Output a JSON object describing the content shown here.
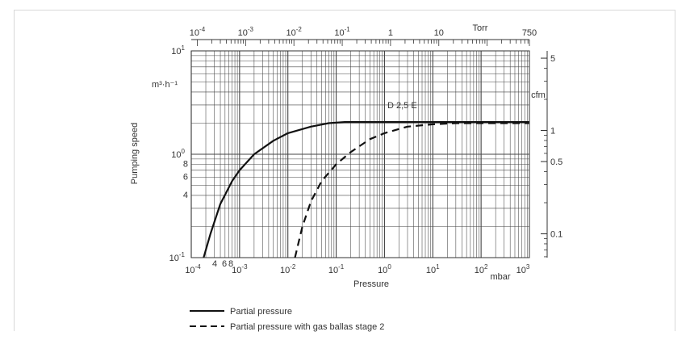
{
  "chart_data": {
    "type": "line",
    "xscale": "log",
    "yscale": "log",
    "xlim": [
      0.0001,
      1000
    ],
    "ylim": [
      0.1,
      10
    ],
    "grid": true,
    "xlabel": "Pressure",
    "xunit": "mbar",
    "ylabel": "Pumping speed",
    "yunit": "m³·h⁻¹",
    "x_ticks": [
      {
        "value": 0.0001,
        "base": "10",
        "exp": "-4"
      },
      {
        "value": 0.001,
        "base": "10",
        "exp": "-3"
      },
      {
        "value": 0.01,
        "base": "10",
        "exp": "-2"
      },
      {
        "value": 0.1,
        "base": "10",
        "exp": "-1"
      },
      {
        "value": 1,
        "base": "10",
        "exp": "0"
      },
      {
        "value": 10,
        "base": "10",
        "exp": "1"
      },
      {
        "value": 100,
        "base": "10",
        "exp": "2"
      },
      {
        "value": 1000,
        "base": "10",
        "exp": "3"
      }
    ],
    "x_minor_labels": [
      "4",
      "6",
      "8"
    ],
    "y_ticks": [
      {
        "value": 0.1,
        "base": "10",
        "exp": "-1"
      },
      {
        "value": 1,
        "base": "10",
        "exp": "0"
      },
      {
        "value": 10,
        "base": "10",
        "exp": "1"
      }
    ],
    "y_minor_labels": [
      {
        "value": 0.4,
        "label": "4"
      },
      {
        "value": 0.6,
        "label": "6"
      },
      {
        "value": 0.8,
        "label": "8"
      }
    ],
    "top_axis": {
      "unit": "Torr",
      "ticks": [
        {
          "value": 0.0001,
          "base": "10",
          "exp": "-4"
        },
        {
          "value": 0.001,
          "base": "10",
          "exp": "-3"
        },
        {
          "value": 0.01,
          "base": "10",
          "exp": "-2"
        },
        {
          "value": 0.1,
          "base": "10",
          "exp": "-1"
        },
        {
          "value": 1,
          "label": "1"
        },
        {
          "value": 10,
          "label": "10"
        },
        {
          "value": 750,
          "label": "750"
        }
      ]
    },
    "right_axis": {
      "unit": "cfm",
      "ticks": [
        {
          "value": 5,
          "label": "5"
        },
        {
          "value": 1,
          "label": "1"
        },
        {
          "value": 0.5,
          "label": "0.5"
        },
        {
          "value": 0.1,
          "label": "0.1"
        }
      ]
    },
    "annotation": "D 2,5 E",
    "series": [
      {
        "name": "Partial pressure",
        "style": "solid",
        "x": [
          0.00018,
          0.00025,
          0.0004,
          0.0007,
          0.001,
          0.002,
          0.005,
          0.01,
          0.03,
          0.07,
          0.15,
          0.3,
          1,
          10,
          100,
          1000
        ],
        "y": [
          0.1,
          0.17,
          0.33,
          0.55,
          0.7,
          1.0,
          1.35,
          1.6,
          1.85,
          2.0,
          2.05,
          2.05,
          2.05,
          2.05,
          2.05,
          2.05
        ]
      },
      {
        "name": "Partial pressure with gas ballas stage 2",
        "style": "dashed",
        "x": [
          0.014,
          0.02,
          0.03,
          0.05,
          0.1,
          0.2,
          0.5,
          1,
          3,
          10,
          30,
          100,
          1000
        ],
        "y": [
          0.1,
          0.2,
          0.35,
          0.55,
          0.8,
          1.05,
          1.4,
          1.6,
          1.85,
          1.95,
          2.0,
          2.0,
          2.0
        ]
      }
    ]
  }
}
